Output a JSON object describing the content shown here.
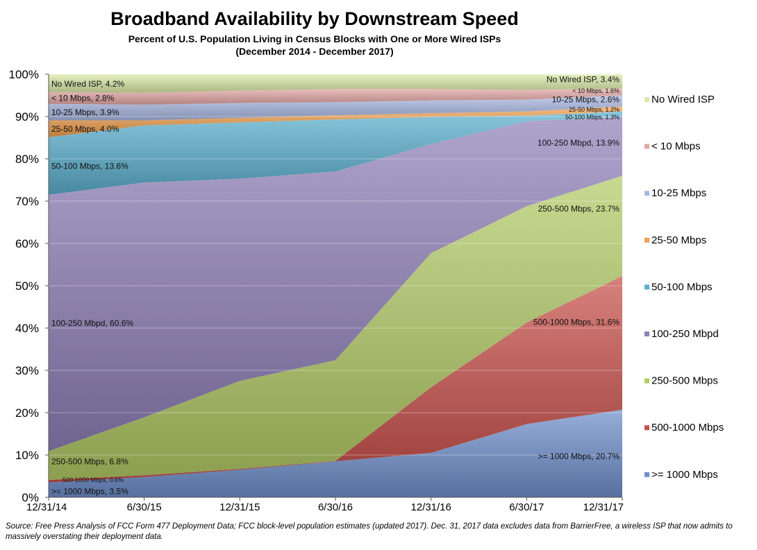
{
  "chart_data": {
    "type": "area",
    "stacked": true,
    "title": "Broadband Availability by Downstream Speed",
    "subtitle": "Percent of U.S. Population Living in Census Blocks with One or More Wired ISPs",
    "subtitle2": "(December 2014 - December 2017)",
    "x": [
      "12/31/14",
      "6/30/15",
      "12/31/15",
      "6/30/16",
      "12/31/16",
      "6/30/17",
      "12/31/17"
    ],
    "ylim": [
      0,
      100
    ],
    "yticks": [
      "0%",
      "10%",
      "20%",
      "30%",
      "40%",
      "50%",
      "60%",
      "70%",
      "80%",
      "90%",
      "100%"
    ],
    "legend_position": "right",
    "series": [
      {
        "name": ">= 1000 Mbps",
        "color": "#6f8fcc",
        "values": [
          3.5,
          4.8,
          6.5,
          8.5,
          10.5,
          17.3,
          20.7
        ]
      },
      {
        "name": "500-1000 Mbps",
        "color": "#c8504a",
        "values": [
          0.6,
          0.4,
          0.2,
          0.1,
          15.5,
          24.0,
          31.6
        ]
      },
      {
        "name": "250-500 Mbps",
        "color": "#b3cc66",
        "values": [
          6.8,
          13.7,
          20.8,
          23.8,
          31.7,
          27.5,
          23.7
        ]
      },
      {
        "name": "100-250 Mbpd",
        "color": "#9080b8",
        "values": [
          60.6,
          55.5,
          47.8,
          44.6,
          25.8,
          20.1,
          13.9
        ]
      },
      {
        "name": "50-100 Mbps",
        "color": "#5bb0cf",
        "values": [
          13.6,
          13.5,
          13.3,
          12.3,
          6.4,
          1.3,
          1.3
        ]
      },
      {
        "name": "25-50 Mbps",
        "color": "#f0a050",
        "values": [
          4.0,
          1.2,
          1.1,
          1.0,
          0.9,
          1.0,
          1.2
        ]
      },
      {
        "name": "10-25 Mbps",
        "color": "#aab9e3",
        "values": [
          3.9,
          3.7,
          3.5,
          3.1,
          3.0,
          2.8,
          2.6
        ]
      },
      {
        "name": "< 10 Mbps",
        "color": "#e3a8a6",
        "values": [
          2.8,
          2.8,
          2.9,
          3.1,
          2.7,
          2.3,
          1.6
        ]
      },
      {
        "name": "No Wired ISP",
        "color": "#dce9a8",
        "values": [
          4.2,
          4.4,
          3.9,
          3.5,
          3.5,
          3.7,
          3.4
        ]
      }
    ],
    "data_labels": [
      {
        "text": "No Wired ISP, 4.2%",
        "series": "No Wired ISP",
        "x": "12/31/14",
        "size": "normal"
      },
      {
        "text": "< 10 Mbps, 2.8%",
        "series": "< 10 Mbps",
        "x": "12/31/14",
        "size": "normal"
      },
      {
        "text": "10-25 Mbps, 3.9%",
        "series": "10-25 Mbps",
        "x": "12/31/14",
        "size": "normal"
      },
      {
        "text": "25-50 Mbps, 4.0%",
        "series": "25-50 Mbps",
        "x": "12/31/14",
        "size": "normal"
      },
      {
        "text": "50-100 Mbps, 13.6%",
        "series": "50-100 Mbps",
        "x": "12/31/14",
        "size": "normal"
      },
      {
        "text": "100-250 Mbpd, 60.6%",
        "series": "100-250 Mbpd",
        "x": "12/31/14",
        "size": "normal"
      },
      {
        "text": "250-500 Mbps, 6.8%",
        "series": "250-500 Mbps",
        "x": "12/31/14",
        "size": "normal"
      },
      {
        "text": "500-1000 Mbps, 0.6%",
        "series": "500-1000 Mbps",
        "x": "12/31/14",
        "size": "tiny"
      },
      {
        "text": ">= 1000 Mbps, 3.5%",
        "series": ">= 1000 Mbps",
        "x": "12/31/14",
        "size": "normal"
      },
      {
        "text": "No Wired ISP, 3.4%",
        "series": "No Wired ISP",
        "x": "12/31/17",
        "size": "normal"
      },
      {
        "text": "< 10 Mbps, 1.6%",
        "series": "< 10 Mbps",
        "x": "12/31/17",
        "size": "tiny"
      },
      {
        "text": "10-25 Mbps, 2.6%",
        "series": "10-25 Mbps",
        "x": "12/31/17",
        "size": "normal"
      },
      {
        "text": "25-50 Mbps, 1.2%",
        "series": "25-50 Mbps",
        "x": "12/31/17",
        "size": "tiny"
      },
      {
        "text": "50-100 Mbps, 1.3%",
        "series": "50-100 Mbps",
        "x": "12/31/17",
        "size": "tiny"
      },
      {
        "text": "100-250 Mbpd, 13.9%",
        "series": "100-250 Mbpd",
        "x": "12/31/17",
        "size": "normal"
      },
      {
        "text": "250-500 Mbps, 23.7%",
        "series": "250-500 Mbps",
        "x": "12/31/17",
        "size": "normal"
      },
      {
        "text": "500-1000 Mbps, 31.6%",
        "series": "500-1000 Mbps",
        "x": "12/31/17",
        "size": "normal"
      },
      {
        "text": ">= 1000 Mbps, 20.7%",
        "series": ">= 1000 Mbps",
        "x": "12/31/17",
        "size": "normal"
      }
    ],
    "legend_order": [
      "No Wired ISP",
      "< 10 Mbps",
      "10-25 Mbps",
      "25-50 Mbps",
      "50-100 Mbps",
      "100-250 Mbpd",
      "250-500 Mbps",
      "500-1000 Mbps",
      ">= 1000 Mbps"
    ]
  },
  "source_note": "Source: Free Press Analysis of FCC Form 477 Deployment Data; FCC block-level population estimates (updated  2017). Dec. 31, 2017 data excludes data from BarrierFree, a wireless ISP that now admits to massively overstating their  deployment data."
}
